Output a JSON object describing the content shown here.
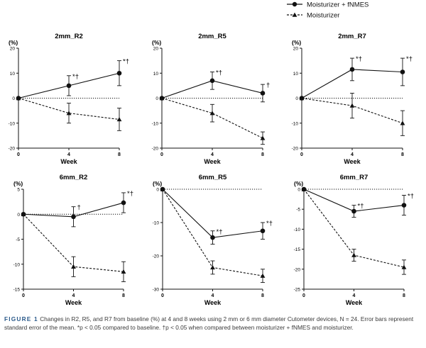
{
  "legend": {
    "items": [
      {
        "label": "Moisturizer + fNMES",
        "marker": "circle",
        "line": "solid"
      },
      {
        "label": "Moisturizer",
        "marker": "triangle",
        "line": "dashed"
      }
    ]
  },
  "caption": {
    "label": "FIGURE 1",
    "text": "Changes in R2, R5, and R7 from baseline (%) at 4 and 8 weeks using 2 mm or 6 mm diameter Cutometer devices, N = 24. Error bars represent standard error of the mean. *p < 0.05 compared to baseline. †p < 0.05 when compared between moisturizer + fNMES and moisturizer."
  },
  "chart_data": [
    {
      "type": "line",
      "title": "2mm_R2",
      "xlabel": "Week",
      "ylabel": "(%)",
      "x": [
        0,
        4,
        8
      ],
      "ylim": [
        -20,
        20
      ],
      "yticks": [
        20,
        10,
        0,
        -10,
        -20
      ],
      "series": [
        {
          "name": "Moisturizer + fNMES",
          "values": [
            0,
            5,
            10
          ],
          "err": [
            0,
            4,
            5
          ],
          "labels": [
            "",
            "*†",
            "*†"
          ]
        },
        {
          "name": "Moisturizer",
          "values": [
            0,
            -6,
            -8.5
          ],
          "err": [
            0,
            4,
            4.5
          ],
          "labels": [
            "",
            "",
            ""
          ]
        }
      ]
    },
    {
      "type": "line",
      "title": "2mm_R5",
      "xlabel": "Week",
      "ylabel": "(%)",
      "x": [
        0,
        4,
        8
      ],
      "ylim": [
        -20,
        20
      ],
      "yticks": [
        20,
        10,
        0,
        -10,
        -20
      ],
      "series": [
        {
          "name": "Moisturizer + fNMES",
          "values": [
            0,
            7,
            2
          ],
          "err": [
            0,
            3.5,
            3.5
          ],
          "labels": [
            "",
            "*†",
            "†"
          ]
        },
        {
          "name": "Moisturizer",
          "values": [
            0,
            -6,
            -16
          ],
          "err": [
            0,
            3.5,
            2.5
          ],
          "labels": [
            "",
            "",
            ""
          ]
        }
      ]
    },
    {
      "type": "line",
      "title": "2mm_R7",
      "xlabel": "Week",
      "ylabel": "(%)",
      "x": [
        0,
        4,
        8
      ],
      "ylim": [
        -20,
        20
      ],
      "yticks": [
        20,
        10,
        0,
        -10,
        -20
      ],
      "series": [
        {
          "name": "Moisturizer + fNMES",
          "values": [
            0,
            11.5,
            10.5
          ],
          "err": [
            0,
            4.5,
            5.5
          ],
          "labels": [
            "",
            "*†",
            "*†"
          ]
        },
        {
          "name": "Moisturizer",
          "values": [
            0,
            -3,
            -10
          ],
          "err": [
            0,
            5,
            5
          ],
          "labels": [
            "",
            "",
            ""
          ]
        }
      ]
    },
    {
      "type": "line",
      "title": "6mm_R2",
      "xlabel": "Week",
      "ylabel": "(%)",
      "x": [
        0,
        4,
        8
      ],
      "ylim": [
        -15,
        5
      ],
      "yticks": [
        5,
        0,
        -5,
        -10,
        -15
      ],
      "series": [
        {
          "name": "Moisturizer + fNMES",
          "values": [
            0,
            -0.5,
            2.3
          ],
          "err": [
            0,
            2,
            2
          ],
          "labels": [
            "",
            "†",
            "*†"
          ]
        },
        {
          "name": "Moisturizer",
          "values": [
            0,
            -10.5,
            -11.5
          ],
          "err": [
            0,
            2,
            2
          ],
          "labels": [
            "",
            "",
            ""
          ]
        }
      ]
    },
    {
      "type": "line",
      "title": "6mm_R5",
      "xlabel": "Week",
      "ylabel": "(%)",
      "x": [
        0,
        4,
        8
      ],
      "ylim": [
        -30,
        0
      ],
      "yticks": [
        0,
        -10,
        -20,
        -30
      ],
      "series": [
        {
          "name": "Moisturizer + fNMES",
          "values": [
            0,
            -14.5,
            -12.5
          ],
          "err": [
            0,
            2,
            2.5
          ],
          "labels": [
            "",
            "*†",
            "*†"
          ]
        },
        {
          "name": "Moisturizer",
          "values": [
            0,
            -23.5,
            -26
          ],
          "err": [
            0,
            2,
            2
          ],
          "labels": [
            "",
            "",
            ""
          ]
        }
      ]
    },
    {
      "type": "line",
      "title": "6mm_R7",
      "xlabel": "Week",
      "ylabel": "(%)",
      "x": [
        0,
        4,
        8
      ],
      "ylim": [
        -25,
        0
      ],
      "yticks": [
        0,
        -5,
        -10,
        -15,
        -20,
        -25
      ],
      "series": [
        {
          "name": "Moisturizer + fNMES",
          "values": [
            0,
            -5.5,
            -4
          ],
          "err": [
            0,
            1.5,
            2.5
          ],
          "labels": [
            "",
            "*†",
            "*†"
          ]
        },
        {
          "name": "Moisturizer",
          "values": [
            0,
            -16.5,
            -19.5
          ],
          "err": [
            0,
            1.5,
            1.8
          ],
          "labels": [
            "",
            "",
            ""
          ]
        }
      ]
    }
  ]
}
